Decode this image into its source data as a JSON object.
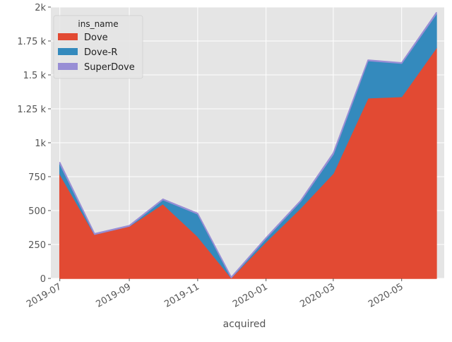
{
  "chart_data": {
    "type": "area",
    "stacked": true,
    "style": "ggplot",
    "xlabel": "acquired",
    "ylabel": "",
    "x_axis_type": "date",
    "xlim": [
      "2019-06-23",
      "2020-06-08"
    ],
    "ylim": [
      0,
      2000
    ],
    "grid": true,
    "x": [
      "2019-07-01",
      "2019-08-01",
      "2019-09-01",
      "2019-10-01",
      "2019-11-01",
      "2019-12-01",
      "2020-01-01",
      "2020-02-01",
      "2020-03-01",
      "2020-04-01",
      "2020-05-01",
      "2020-06-01"
    ],
    "x_ticks": [
      "2019-07-01",
      "2019-09-01",
      "2019-11-01",
      "2020-01-01",
      "2020-03-01",
      "2020-05-01"
    ],
    "x_tick_labels": [
      "2019-07",
      "2019-09",
      "2019-11",
      "2020-01",
      "2020-03",
      "2020-05"
    ],
    "y_ticks": [
      0,
      250,
      500,
      750,
      1000,
      1250,
      1500,
      1750,
      2000
    ],
    "y_tick_labels": [
      "0",
      "250",
      "500",
      "750",
      "1k",
      "1.25 k",
      "1.5 k",
      "1.75 k",
      "2k"
    ],
    "series": [
      {
        "name": "Dove",
        "color": "#e24a33",
        "values": [
          770,
          325,
          385,
          550,
          310,
          5,
          270,
          520,
          775,
          1330,
          1340,
          1700
        ]
      },
      {
        "name": "Dove-R",
        "color": "#348abd",
        "values": [
          75,
          0,
          0,
          30,
          165,
          0,
          25,
          50,
          140,
          275,
          245,
          250
        ]
      },
      {
        "name": "SuperDove",
        "color": "#988ed5",
        "values": [
          10,
          5,
          5,
          5,
          5,
          5,
          5,
          5,
          10,
          5,
          5,
          10
        ]
      }
    ],
    "legend": {
      "title": "ins_name",
      "position": "top-left"
    }
  }
}
